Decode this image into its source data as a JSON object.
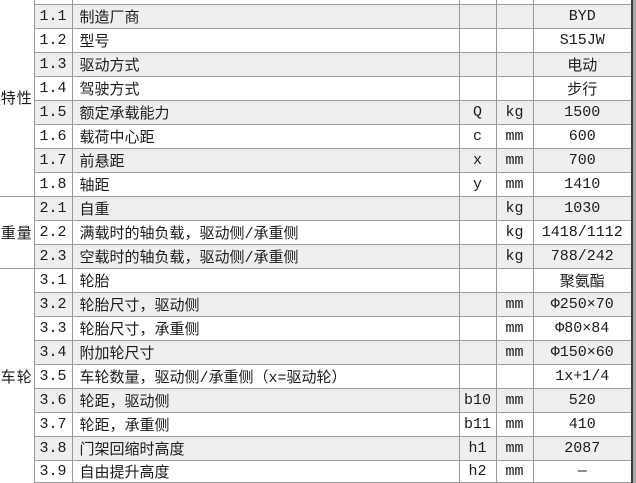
{
  "table": {
    "sections": [
      {
        "category": "特性",
        "rows": [
          {
            "index": "1.1",
            "description": "制造厂商",
            "symbol": "",
            "unit": "",
            "value": "BYD"
          },
          {
            "index": "1.2",
            "description": "型号",
            "symbol": "",
            "unit": "",
            "value": "S15JW"
          },
          {
            "index": "1.3",
            "description": "驱动方式",
            "symbol": "",
            "unit": "",
            "value": "电动"
          },
          {
            "index": "1.4",
            "description": "驾驶方式",
            "symbol": "",
            "unit": "",
            "value": "步行"
          },
          {
            "index": "1.5",
            "description": "额定承载能力",
            "symbol": "Q",
            "unit": "kg",
            "value": "1500"
          },
          {
            "index": "1.6",
            "description": "载荷中心距",
            "symbol": "c",
            "unit": "mm",
            "value": "600"
          },
          {
            "index": "1.7",
            "description": "前悬距",
            "symbol": "x",
            "unit": "mm",
            "value": "700"
          },
          {
            "index": "1.8",
            "description": "轴距",
            "symbol": "y",
            "unit": "mm",
            "value": "1410"
          }
        ]
      },
      {
        "category": "重量",
        "rows": [
          {
            "index": "2.1",
            "description": "自重",
            "symbol": "",
            "unit": "kg",
            "value": "1030"
          },
          {
            "index": "2.2",
            "description": "满载时的轴负载，驱动侧/承重侧",
            "symbol": "",
            "unit": "kg",
            "value": "1418/1112"
          },
          {
            "index": "2.3",
            "description": "空载时的轴负载，驱动侧/承重侧",
            "symbol": "",
            "unit": "kg",
            "value": "788/242"
          }
        ]
      },
      {
        "category": "车轮",
        "rows": [
          {
            "index": "3.1",
            "description": "轮胎",
            "symbol": "",
            "unit": "",
            "value": "聚氨酯"
          },
          {
            "index": "3.2",
            "description": "轮胎尺寸，驱动侧",
            "symbol": "",
            "unit": "mm",
            "value": "Φ250×70"
          },
          {
            "index": "3.3",
            "description": "轮胎尺寸，承重侧",
            "symbol": "",
            "unit": "mm",
            "value": "Φ80×84"
          },
          {
            "index": "3.4",
            "description": "附加轮尺寸",
            "symbol": "",
            "unit": "mm",
            "value": "Φ150×60"
          },
          {
            "index": "3.5",
            "description": "车轮数量，驱动侧/承重侧（x=驱动轮）",
            "symbol": "",
            "unit": "",
            "value": "1x+1/4"
          },
          {
            "index": "3.6",
            "description": "轮距，驱动侧",
            "symbol": "b10",
            "unit": "mm",
            "value": "520"
          },
          {
            "index": "3.7",
            "description": "轮距，承重侧",
            "symbol": "b11",
            "unit": "mm",
            "value": "410"
          },
          {
            "index": "3.8",
            "description": "门架回缩时高度",
            "symbol": "h1",
            "unit": "mm",
            "value": "2087"
          },
          {
            "index": "3.9",
            "description": "自由提升高度",
            "symbol": "h2",
            "unit": "mm",
            "value": "—"
          }
        ]
      }
    ]
  },
  "colors": {
    "shaded_row_bg": "#efefef",
    "plain_row_bg": "#ffffff",
    "grid_border": "#999999",
    "outer_right_border": "#3c3c3c",
    "right_strip_bg": "#aaaaaa",
    "text": "#1b1b1b"
  }
}
